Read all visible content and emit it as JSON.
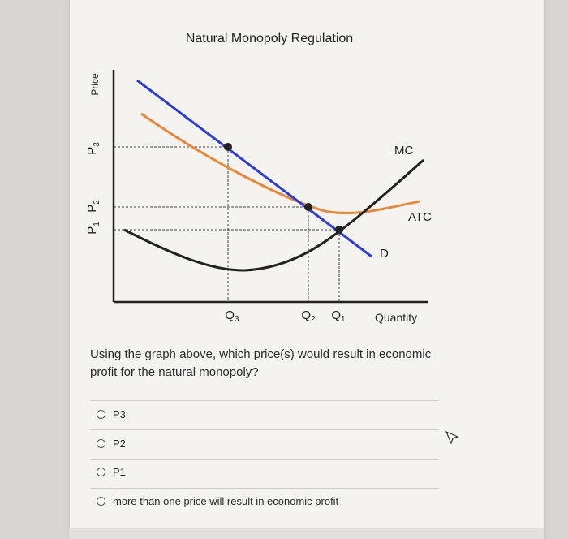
{
  "chart": {
    "title": "Natural Monopoly Regulation",
    "y_axis_label": "Price",
    "x_axis_label": "Quantity",
    "price_labels": [
      {
        "text": "P",
        "sub": "3"
      },
      {
        "text": "P",
        "sub": "2"
      },
      {
        "text": "P",
        "sub": "1"
      }
    ],
    "quantity_labels": [
      {
        "text": "Q",
        "sub": "3"
      },
      {
        "text": "Q",
        "sub": "2"
      },
      {
        "text": "Q",
        "sub": "1"
      }
    ],
    "curve_labels": {
      "mc": "MC",
      "atc": "ATC",
      "demand": "D"
    },
    "colors": {
      "demand": "#2e3ed1",
      "atc": "#e8883a",
      "mc": "#222222"
    }
  },
  "question": {
    "text": "Using the graph above, which price(s) would result in economic profit for the natural monopoly?"
  },
  "options": [
    {
      "label": "P3"
    },
    {
      "label": "P2"
    },
    {
      "label": "P1"
    },
    {
      "label": "more than one price will result in economic profit"
    }
  ]
}
